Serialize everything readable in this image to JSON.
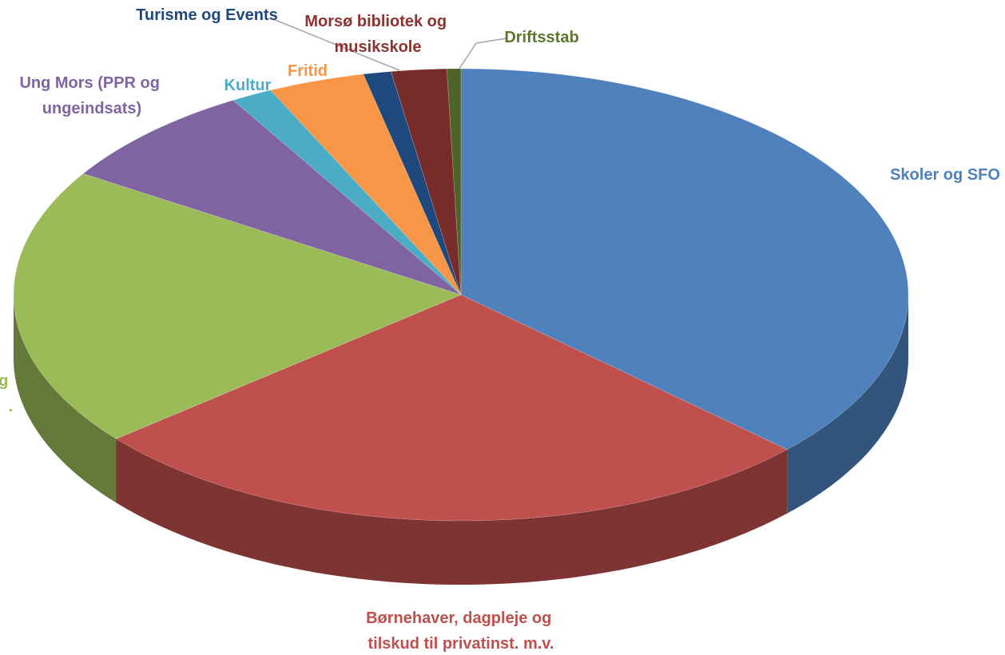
{
  "chart_data": {
    "type": "pie",
    "categories": [
      "Skoler og SFO",
      "Børnehaver, dagpleje og tilskud til privatinst. m.v.",
      "og .",
      "Ung Mors (PPR og ungeindsats)",
      "Kultur",
      "Fritid",
      "Turisme og Events",
      "Morsø bibliotek og musikskole",
      "Driftsstab"
    ],
    "values": [
      37,
      27,
      20,
      7.5,
      1.5,
      3.5,
      1,
      2,
      0.5
    ],
    "colors": [
      "#4f81bd",
      "#c0504d",
      "#9bbb59",
      "#8064a2",
      "#4bacc6",
      "#f79646",
      "#1f497d",
      "#772c2a",
      "#4f6228"
    ]
  }
}
